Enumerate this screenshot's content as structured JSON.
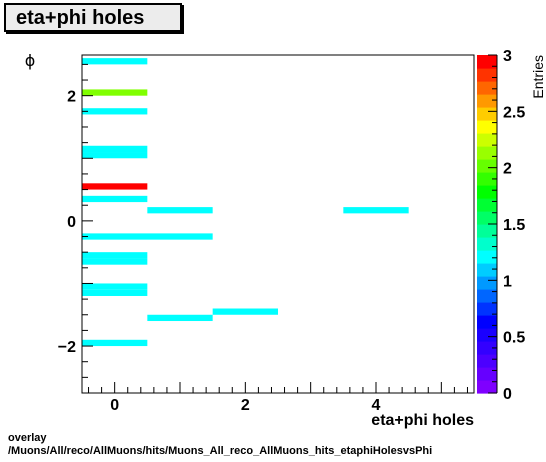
{
  "header": {
    "title": "eta+phi holes"
  },
  "caption": {
    "line1": "overlay",
    "line2": "/Muons/All/reco/AllMuons/hits/Muons_All_reco_AllMuons_hits_etaphiHolesvsPhi"
  },
  "chart_data": {
    "type": "heatmap",
    "title": "eta+phi holes",
    "xlabel": "eta+phi holes",
    "ylabel": "ϕ",
    "zlabel": "Entries",
    "xlim": [
      -0.5,
      5.5
    ],
    "ylim": [
      -2.75,
      2.65
    ],
    "zlim": [
      0,
      3
    ],
    "x_ticks": [
      0,
      2,
      4
    ],
    "y_ticks": [
      -2,
      0,
      2
    ],
    "z_ticks": [
      "0",
      "0.5",
      "1",
      "1.5",
      "2",
      "2.5",
      "3"
    ],
    "bin_height": 0.1,
    "cells": [
      {
        "x0": -0.5,
        "x1": 0.5,
        "y0": 2.5,
        "y1": 2.6,
        "value": 1
      },
      {
        "x0": -0.5,
        "x1": 0.5,
        "y0": 2.0,
        "y1": 2.1,
        "value": 2
      },
      {
        "x0": -0.5,
        "x1": 0.5,
        "y0": 1.7,
        "y1": 1.8,
        "value": 1
      },
      {
        "x0": -0.5,
        "x1": 0.5,
        "y0": 1.1,
        "y1": 1.2,
        "value": 1
      },
      {
        "x0": -0.5,
        "x1": 0.5,
        "y0": 1.0,
        "y1": 1.1,
        "value": 1
      },
      {
        "x0": -0.5,
        "x1": 0.5,
        "y0": 0.5,
        "y1": 0.6,
        "value": 3
      },
      {
        "x0": -0.5,
        "x1": 0.5,
        "y0": 0.3,
        "y1": 0.4,
        "value": 1
      },
      {
        "x0": 0.5,
        "x1": 1.5,
        "y0": 0.12,
        "y1": 0.22,
        "value": 1
      },
      {
        "x0": 3.5,
        "x1": 4.5,
        "y0": 0.12,
        "y1": 0.22,
        "value": 1
      },
      {
        "x0": -0.5,
        "x1": 1.5,
        "y0": -0.3,
        "y1": -0.2,
        "value": 1
      },
      {
        "x0": -0.5,
        "x1": 0.5,
        "y0": -0.6,
        "y1": -0.5,
        "value": 1
      },
      {
        "x0": -0.5,
        "x1": 0.5,
        "y0": -0.7,
        "y1": -0.6,
        "value": 1
      },
      {
        "x0": -0.5,
        "x1": 0.5,
        "y0": -1.1,
        "y1": -1.0,
        "value": 1
      },
      {
        "x0": -0.5,
        "x1": 0.5,
        "y0": -1.2,
        "y1": -1.1,
        "value": 1
      },
      {
        "x0": 1.5,
        "x1": 2.5,
        "y0": -1.5,
        "y1": -1.4,
        "value": 1
      },
      {
        "x0": 0.5,
        "x1": 1.5,
        "y0": -1.6,
        "y1": -1.5,
        "value": 1
      },
      {
        "x0": -0.5,
        "x1": 0.5,
        "y0": -2.0,
        "y1": -1.9,
        "value": 1
      }
    ],
    "palette": [
      "#7f00ff",
      "#6600ff",
      "#4c00ff",
      "#3300ff",
      "#1a00ff",
      "#0000ff",
      "#0033ff",
      "#0066ff",
      "#0099ff",
      "#00ccff",
      "#00ffff",
      "#00ffcc",
      "#00ff99",
      "#00ff66",
      "#00ff33",
      "#00ff00",
      "#33ff00",
      "#66ff00",
      "#99ff00",
      "#ccff00",
      "#ffff00",
      "#ffcc00",
      "#ff9900",
      "#ff6600",
      "#ff3300",
      "#ff0000"
    ],
    "cell_colors": {
      "1": "#00ffff",
      "2": "#80ff00",
      "3": "#ff0000"
    },
    "axis_color": "#000000",
    "background": "#ffffff"
  }
}
